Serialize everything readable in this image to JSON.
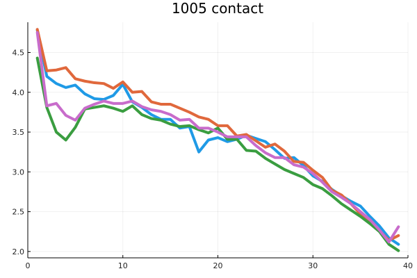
{
  "chart_data": {
    "type": "line",
    "title": "1005 contact",
    "xlabel": "",
    "ylabel": "",
    "xlim": [
      0,
      40
    ],
    "ylim": [
      1.92,
      4.88
    ],
    "xticks": [
      0,
      10,
      20,
      30,
      40
    ],
    "yticks": [
      2.0,
      2.5,
      3.0,
      3.5,
      4.0,
      4.5
    ],
    "xtick_labels": [
      "0",
      "10",
      "20",
      "30",
      "40"
    ],
    "ytick_labels": [
      "2.0",
      "2.5",
      "3.0",
      "3.5",
      "4.0",
      "4.5"
    ],
    "grid": true,
    "legend": "none",
    "series": [
      {
        "color": "#1f9ae6",
        "x": [
          1,
          2,
          3,
          4,
          5,
          6,
          7,
          8,
          9,
          10,
          11,
          12,
          13,
          14,
          15,
          16,
          17,
          18,
          19,
          20,
          21,
          22,
          23,
          24,
          25,
          26,
          27,
          28,
          29,
          30,
          31,
          32,
          33,
          34,
          35,
          36,
          37,
          38,
          39
        ],
        "values": [
          4.78,
          4.2,
          4.11,
          4.06,
          4.09,
          3.98,
          3.92,
          3.91,
          3.96,
          4.1,
          3.88,
          3.81,
          3.72,
          3.66,
          3.66,
          3.55,
          3.57,
          3.25,
          3.4,
          3.43,
          3.38,
          3.41,
          3.46,
          3.42,
          3.38,
          3.28,
          3.17,
          3.18,
          3.08,
          2.95,
          2.88,
          2.78,
          2.7,
          2.63,
          2.57,
          2.44,
          2.32,
          2.17,
          2.09
        ]
      },
      {
        "color": "#e0683c",
        "x": [
          1,
          2,
          3,
          4,
          5,
          6,
          7,
          8,
          9,
          10,
          11,
          12,
          13,
          14,
          15,
          16,
          17,
          18,
          19,
          20,
          21,
          22,
          23,
          24,
          25,
          26,
          27,
          28,
          29,
          30,
          31,
          32,
          33,
          34,
          35,
          36,
          37,
          38,
          39
        ],
        "values": [
          4.79,
          4.27,
          4.28,
          4.31,
          4.17,
          4.14,
          4.12,
          4.11,
          4.05,
          4.13,
          4.0,
          4.01,
          3.88,
          3.85,
          3.85,
          3.8,
          3.75,
          3.69,
          3.66,
          3.58,
          3.58,
          3.45,
          3.47,
          3.39,
          3.31,
          3.35,
          3.26,
          3.13,
          3.12,
          3.02,
          2.93,
          2.77,
          2.71,
          2.6,
          2.47,
          2.36,
          2.26,
          2.14,
          2.2
        ]
      },
      {
        "color": "#3a9d40",
        "x": [
          1,
          2,
          3,
          4,
          5,
          6,
          7,
          8,
          9,
          10,
          11,
          12,
          13,
          14,
          15,
          16,
          17,
          18,
          19,
          20,
          21,
          22,
          23,
          24,
          25,
          26,
          27,
          28,
          29,
          30,
          31,
          32,
          33,
          34,
          35,
          36,
          37,
          38,
          39
        ],
        "values": [
          4.43,
          3.81,
          3.5,
          3.4,
          3.56,
          3.79,
          3.81,
          3.83,
          3.8,
          3.76,
          3.83,
          3.72,
          3.67,
          3.65,
          3.6,
          3.57,
          3.58,
          3.53,
          3.49,
          3.55,
          3.41,
          3.41,
          3.27,
          3.26,
          3.17,
          3.1,
          3.03,
          2.98,
          2.93,
          2.84,
          2.79,
          2.7,
          2.6,
          2.52,
          2.44,
          2.35,
          2.25,
          2.09,
          2.01
        ]
      },
      {
        "color": "#c86ccb",
        "x": [
          1,
          2,
          3,
          4,
          5,
          6,
          7,
          8,
          9,
          10,
          11,
          12,
          13,
          14,
          15,
          16,
          17,
          18,
          19,
          20,
          21,
          22,
          23,
          24,
          25,
          26,
          27,
          28,
          29,
          30,
          31,
          32,
          33,
          34,
          35,
          36,
          37,
          38,
          39
        ],
        "values": [
          4.75,
          3.83,
          3.86,
          3.71,
          3.65,
          3.8,
          3.85,
          3.89,
          3.86,
          3.86,
          3.89,
          3.82,
          3.78,
          3.76,
          3.72,
          3.65,
          3.66,
          3.55,
          3.55,
          3.5,
          3.44,
          3.44,
          3.44,
          3.33,
          3.24,
          3.18,
          3.18,
          3.09,
          3.06,
          2.98,
          2.87,
          2.75,
          2.68,
          2.6,
          2.5,
          2.4,
          2.27,
          2.12,
          2.31
        ]
      }
    ]
  }
}
